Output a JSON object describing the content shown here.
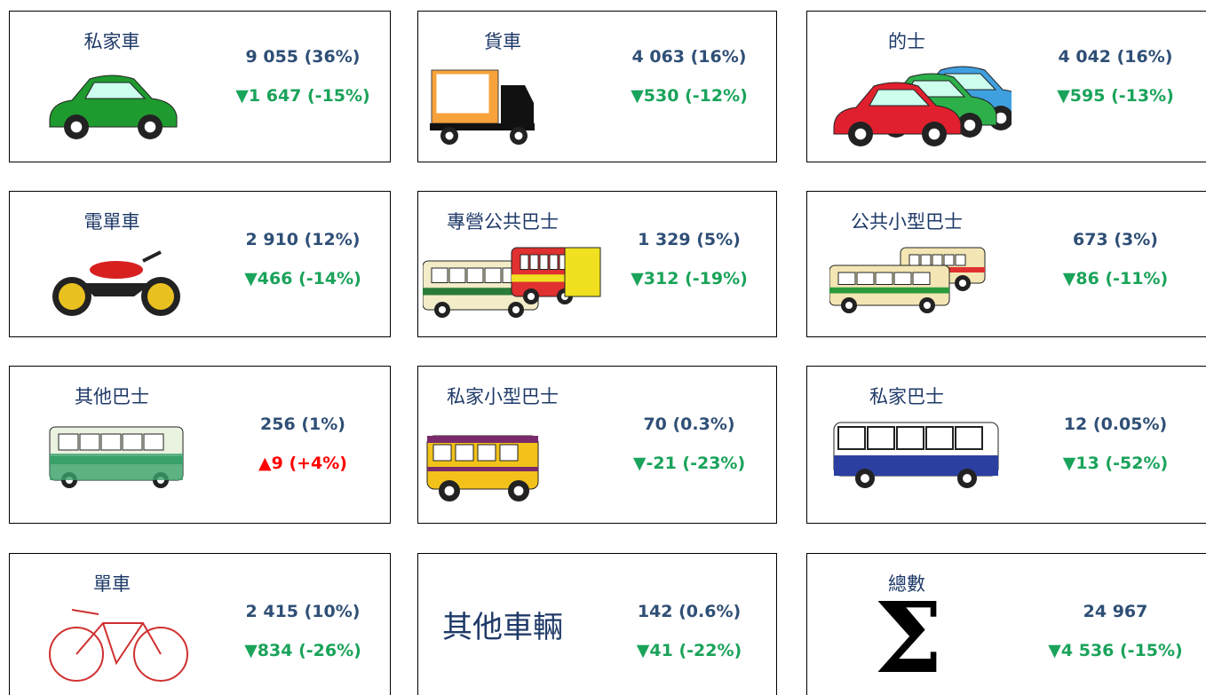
{
  "cards": [
    {
      "label": "私家車",
      "total": "9 055 (36%)",
      "change": "▼1 647 (-15%)",
      "change_color": "#1aa35a"
    },
    {
      "label": "貨車",
      "total": "4 063 (16%)",
      "change": "▼530 (-12%)",
      "change_color": "#1aa35a"
    },
    {
      "label": "的士",
      "total": "4 042 (16%)",
      "change": "▼595 (-13%)",
      "change_color": "#1aa35a"
    },
    {
      "label": "電單車",
      "total": "2 910 (12%)",
      "change": "▼466 (-14%)",
      "change_color": "#1aa35a"
    },
    {
      "label": "專營公共巴士",
      "total": "1 329 (5%)",
      "change": "▼312 (-19%)",
      "change_color": "#1aa35a"
    },
    {
      "label": "公共小型巴士",
      "total": "673 (3%)",
      "change": "▼86 (-11%)",
      "change_color": "#1aa35a"
    },
    {
      "label": "其他巴士",
      "total": "256 (1%)",
      "change": "▲9 (+4%)",
      "change_color": "#ff0000"
    },
    {
      "label": "私家小型巴士",
      "total": "70 (0.3%)",
      "change": "▼-21 (-23%)",
      "change_color": "#1aa35a"
    },
    {
      "label": "私家巴士",
      "total": "12 (0.05%)",
      "change": "▼13 (-52%)",
      "change_color": "#1aa35a"
    },
    {
      "label": "單車",
      "total": "2 415 (10%)",
      "change": "▼834 (-26%)",
      "change_color": "#1aa35a"
    },
    {
      "label": "其他車輛",
      "total": "142 (0.6%)",
      "change": "▼41 (-22%)",
      "change_color": "#1aa35a"
    },
    {
      "label": "總數",
      "symbol": "Σ",
      "total": "24 967",
      "change": "▼4 536 (-15%)",
      "change_color": "#1aa35a"
    }
  ]
}
